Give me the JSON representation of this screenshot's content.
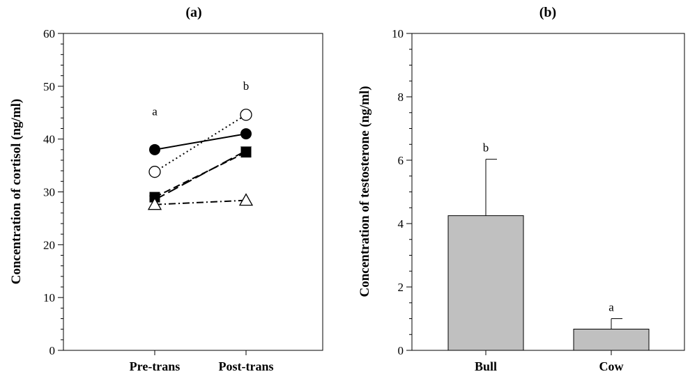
{
  "chart_data": [
    {
      "type": "line",
      "title": "(a)",
      "xlabel": "",
      "ylabel": "Concentration of cortisol (ng/ml)",
      "ylim": [
        0,
        60
      ],
      "yticks": [
        0,
        10,
        20,
        30,
        40,
        50,
        60
      ],
      "categories": [
        "Pre-trans",
        "Post-trans"
      ],
      "series": [
        {
          "marker": "filled-circle",
          "line_style": "solid",
          "values": [
            38.0,
            41.0
          ]
        },
        {
          "marker": "open-circle",
          "line_style": "dotted",
          "values": [
            33.8,
            44.6
          ]
        },
        {
          "marker": "filled-square",
          "line_style": "dashed",
          "values": [
            29.0,
            37.5
          ]
        },
        {
          "marker": "filled-triangle-down",
          "line_style": "long-dash",
          "values": [
            28.5,
            37.8
          ]
        },
        {
          "marker": "open-triangle-up",
          "line_style": "dash-dot",
          "values": [
            27.6,
            28.4
          ]
        }
      ],
      "annotations": [
        {
          "text": "a",
          "category": "Pre-trans",
          "y": 44.5
        },
        {
          "text": "b",
          "category": "Post-trans",
          "y": 49.3
        }
      ]
    },
    {
      "type": "bar",
      "title": "(b)",
      "xlabel": "",
      "ylabel": "Concentration of testosterone (ng/ml)",
      "ylim": [
        0,
        10
      ],
      "yticks": [
        0,
        2,
        4,
        6,
        8,
        10
      ],
      "categories": [
        "Bull",
        "Cow"
      ],
      "values": [
        4.25,
        0.67
      ],
      "error_upper": [
        6.03,
        1.0
      ],
      "significance": [
        "b",
        "a"
      ],
      "bar_color": "#c0c0c0"
    }
  ],
  "colors": {
    "axis": "#000000",
    "bar_fill": "#c0c0c0",
    "open_marker_fill": "#ffffff"
  }
}
